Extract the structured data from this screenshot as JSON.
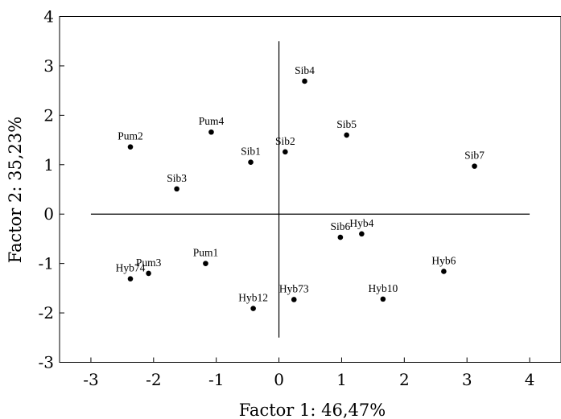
{
  "chart_data": {
    "type": "scatter",
    "title": "",
    "xlabel": "Factor 1: 46,47%",
    "ylabel": "Factor 2: 35,23%",
    "xlim": [
      -3.5,
      4.5
    ],
    "ylim": [
      -3,
      4
    ],
    "xticks": [
      -3,
      -2,
      -1,
      0,
      1,
      2,
      3,
      4
    ],
    "yticks": [
      -3,
      -2,
      -1,
      0,
      1,
      2,
      3,
      4
    ],
    "xtick_labels": [
      "-3",
      "-2",
      "-1",
      "0",
      "1",
      "2",
      "3",
      "4"
    ],
    "ytick_labels": [
      "-3",
      "-2",
      "-1",
      "0",
      "1",
      "2",
      "3",
      "4"
    ],
    "grid": false,
    "reference_lines": {
      "horizontal": {
        "y": 0,
        "x_from": -3,
        "x_to": 4
      },
      "vertical": {
        "x": 0,
        "y_from": -2.5,
        "y_to": 3.5
      }
    },
    "points": [
      {
        "label": "Pum2",
        "x": -2.37,
        "y": 1.36
      },
      {
        "label": "Pum4",
        "x": -1.08,
        "y": 1.66
      },
      {
        "label": "Sib4",
        "x": 0.41,
        "y": 2.69
      },
      {
        "label": "Sib5",
        "x": 1.08,
        "y": 1.6
      },
      {
        "label": "Sib1",
        "x": -0.45,
        "y": 1.05
      },
      {
        "label": "Sib2",
        "x": 0.1,
        "y": 1.26
      },
      {
        "label": "Sib7",
        "x": 3.12,
        "y": 0.97
      },
      {
        "label": "Sib3",
        "x": -1.63,
        "y": 0.51
      },
      {
        "label": "Sib6",
        "x": 0.98,
        "y": -0.47
      },
      {
        "label": "Hyb4",
        "x": 1.32,
        "y": -0.4
      },
      {
        "label": "Pum1",
        "x": -1.17,
        "y": -1.0
      },
      {
        "label": "Hyb6",
        "x": 2.63,
        "y": -1.16
      },
      {
        "label": "Hyb74",
        "x": -2.37,
        "y": -1.31
      },
      {
        "label": "Pum3",
        "x": -2.08,
        "y": -1.2
      },
      {
        "label": "Hyb12",
        "x": -0.41,
        "y": -1.91
      },
      {
        "label": "Hyb73",
        "x": 0.24,
        "y": -1.73
      },
      {
        "label": "Hyb10",
        "x": 1.66,
        "y": -1.72
      }
    ]
  }
}
